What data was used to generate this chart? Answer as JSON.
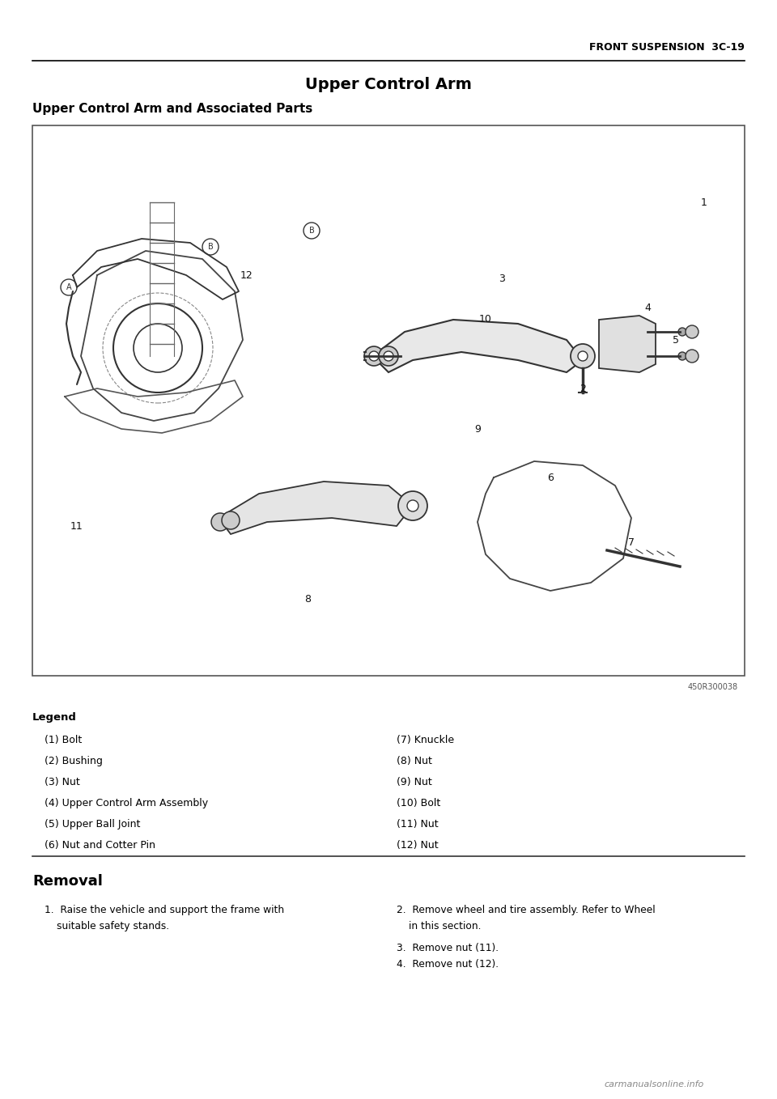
{
  "page_header_right": "FRONT SUSPENSION  3C-19",
  "section_title": "Upper Control Arm",
  "subsection_title": "Upper Control Arm and Associated Parts",
  "diagram_ref": "450R300038",
  "legend_title": "Legend",
  "legend_left": [
    "(1) Bolt",
    "(2) Bushing",
    "(3) Nut",
    "(4) Upper Control Arm Assembly",
    "(5) Upper Ball Joint",
    "(6) Nut and Cotter Pin"
  ],
  "legend_right": [
    "(7) Knuckle",
    "(8) Nut",
    "(9) Nut",
    "(10) Bolt",
    "(11) Nut",
    "(12) Nut"
  ],
  "removal_title": "Removal",
  "removal_steps": [
    "1. Raise the vehicle and support the frame with\n     suitable safety stands.",
    "2. Remove wheel and tire assembly. Refer to Wheel\n     in this section.",
    "3. Remove nut (11).",
    "4. Remove nut (12)."
  ],
  "watermark": "carmanualsonline.info",
  "bg_color": "#ffffff",
  "text_color": "#000000",
  "header_line_color": "#000000",
  "diagram_border_color": "#555555"
}
